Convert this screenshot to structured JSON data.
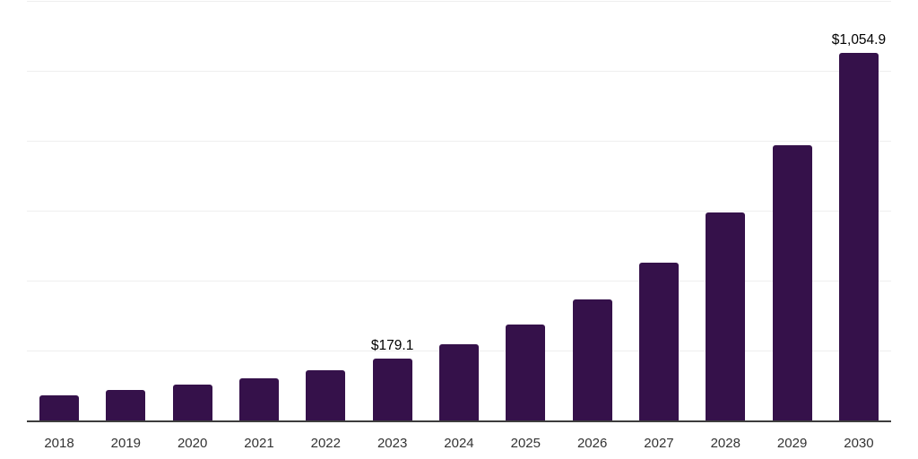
{
  "colors": {
    "background": "#ffffff",
    "bar": "#35114A",
    "gridline": "#efefef",
    "axis": "#3d3d3d",
    "value_label": "#000000",
    "tick_label": "#333333"
  },
  "chart_data": {
    "type": "bar",
    "title": "",
    "xlabel": "",
    "ylabel": "",
    "categories": [
      "2018",
      "2019",
      "2020",
      "2021",
      "2022",
      "2023",
      "2024",
      "2025",
      "2026",
      "2027",
      "2028",
      "2029",
      "2030"
    ],
    "values": [
      75,
      91,
      104,
      123,
      145,
      179.1,
      220,
      277,
      350,
      453,
      598,
      790,
      1054.9
    ],
    "value_labels": [
      "",
      "",
      "",
      "",
      "",
      "$179.1",
      "",
      "",
      "",
      "",
      "",
      "",
      "$1,054.9"
    ],
    "ylim": [
      0,
      1200
    ],
    "grid_step": 200,
    "grid": true,
    "legend": "none"
  }
}
